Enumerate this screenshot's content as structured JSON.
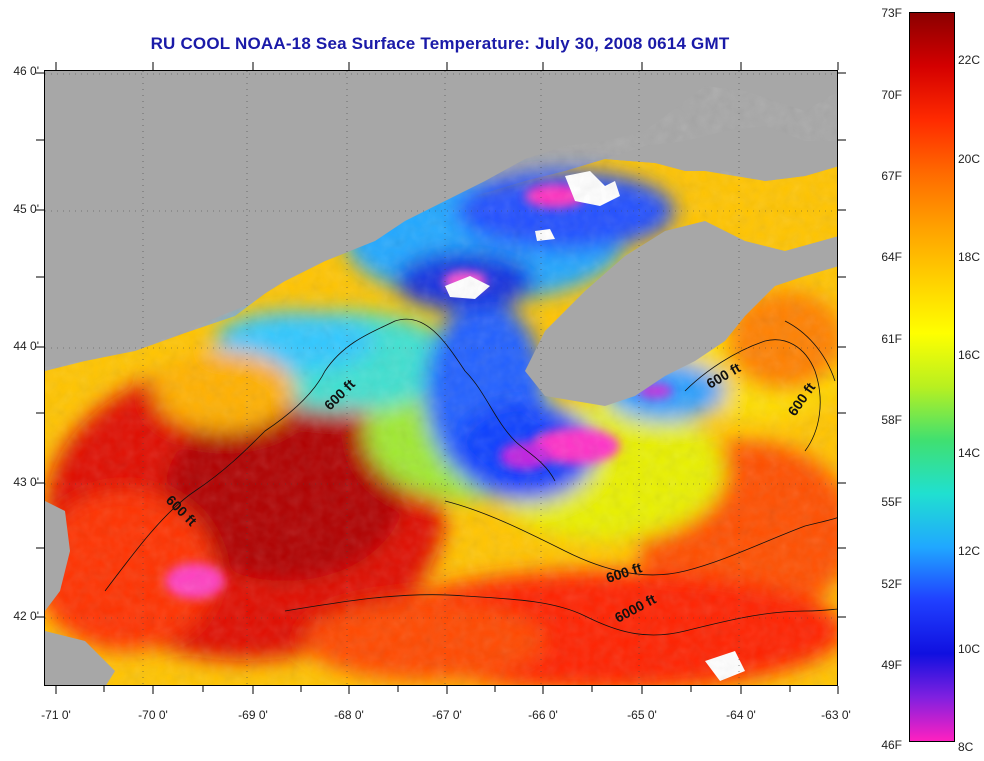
{
  "title": "RU COOL  NOAA-18  Sea Surface Temperature:  July 30, 2008 0614 GMT",
  "lat_labels": [
    "46 0'",
    "45 0'",
    "44 0'",
    "43 0'",
    "42 0'"
  ],
  "lon_labels": [
    "-71 0'",
    "-70 0'",
    "-69 0'",
    "-68 0'",
    "-67 0'",
    "-66 0'",
    "-65 0'",
    "-64 0'",
    "-63 0'"
  ],
  "colorbar": {
    "fahrenheit": [
      "73F",
      "70F",
      "67F",
      "64F",
      "61F",
      "58F",
      "55F",
      "52F",
      "49F",
      "46F"
    ],
    "celsius": [
      "22C",
      "20C",
      "18C",
      "16C",
      "14C",
      "12C",
      "10C",
      "8C"
    ],
    "colors": [
      "#8b0000",
      "#d40000",
      "#ff2a00",
      "#ff6a00",
      "#ffa000",
      "#ffd000",
      "#ffff00",
      "#b8f020",
      "#40e070",
      "#20e0d0",
      "#20a8ff",
      "#2040ff",
      "#1010e0",
      "#8020e0",
      "#ff20c0"
    ]
  },
  "contour_labels": [
    "600 ft",
    "600 ft",
    "600 ft",
    "600 ft",
    "600 ft",
    "6000 ft"
  ],
  "land_color": "#a7a7a7"
}
